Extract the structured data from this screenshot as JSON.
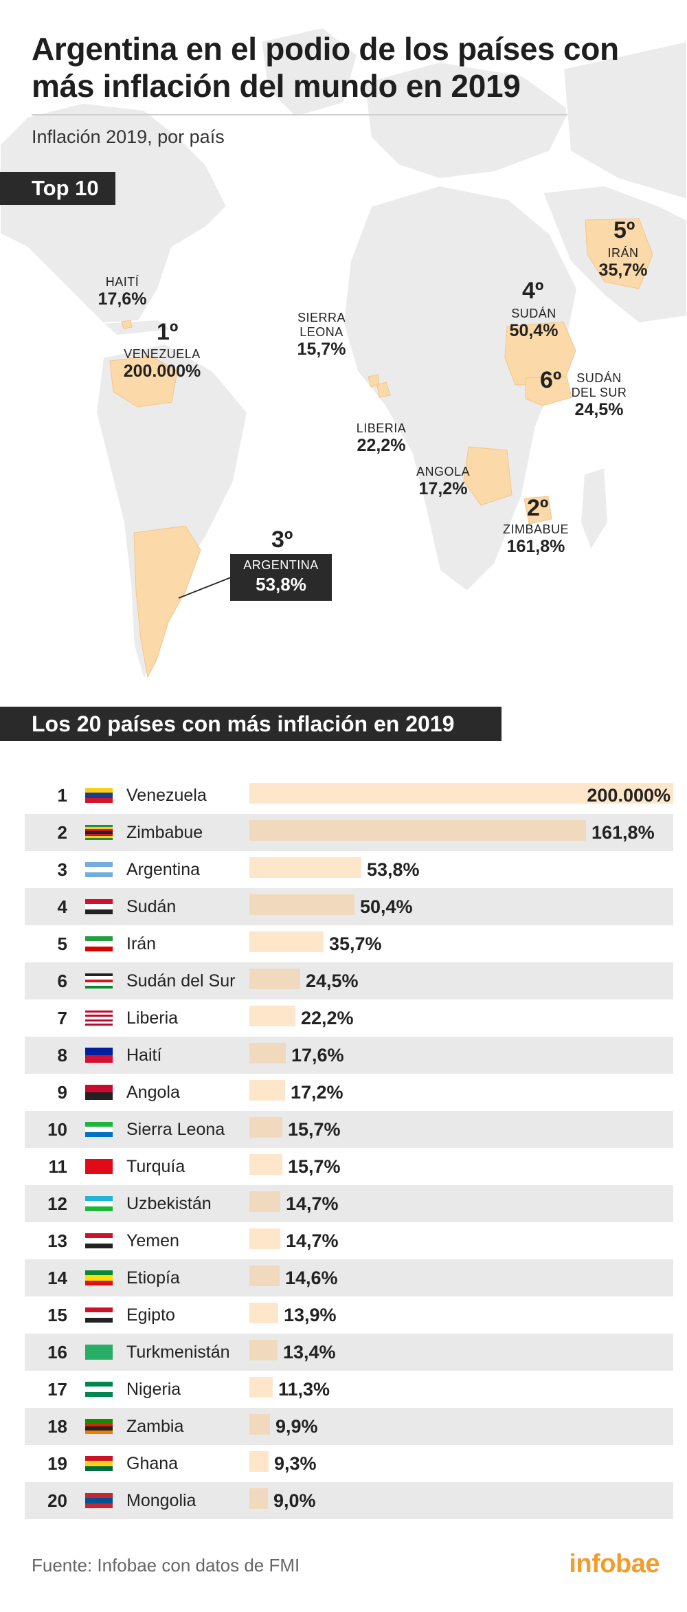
{
  "title": "Argentina en el podio de los países con más inflación del mundo en 2019",
  "subtitle": "Inflación 2019, por país",
  "top10_label": "Top 10",
  "list_label": "Los 20 países con más inflación en 2019",
  "colors": {
    "highlight": "#fde6c9",
    "highlight_alt": "#f0d9bc",
    "band": "#e9e9e9",
    "dark": "#2a2a2a",
    "brand": "#f39c2c"
  },
  "map_labels": {
    "haiti": {
      "country": "HAITÍ",
      "value": "17,6%"
    },
    "venezuela": {
      "rank": "1º",
      "country": "VENEZUELA",
      "value": "200.000%"
    },
    "sierra_leona": {
      "country_line1": "SIERRA",
      "country_line2": "LEONA",
      "value": "15,7%"
    },
    "liberia": {
      "country": "LIBERIA",
      "value": "22,2%"
    },
    "angola": {
      "country": "ANGOLA",
      "value": "17,2%"
    },
    "zimbabue": {
      "rank": "2º",
      "country": "ZIMBABUE",
      "value": "161,8%"
    },
    "argentina": {
      "rank": "3º",
      "country": "ARGENTINA",
      "value": "53,8%"
    },
    "sudan": {
      "rank": "4º",
      "country": "SUDÁN",
      "value": "50,4%"
    },
    "iran": {
      "rank": "5º",
      "country": "IRÁN",
      "value": "35,7%"
    },
    "sudan_sur": {
      "rank": "6º",
      "country_line1": "SUDÁN",
      "country_line2": "DEL SUR",
      "value": "24,5%"
    }
  },
  "chart_data": {
    "type": "bar",
    "orientation": "horizontal",
    "title": "Los 20 países con más inflación en 2019",
    "unit": "%",
    "rows": [
      {
        "rank": "1",
        "country": "Venezuela",
        "value": 200000,
        "label": "200.000%",
        "flag": "venezuela"
      },
      {
        "rank": "2",
        "country": "Zimbabue",
        "value": 161.8,
        "label": "161,8%",
        "flag": "zimbabue"
      },
      {
        "rank": "3",
        "country": "Argentina",
        "value": 53.8,
        "label": "53,8%",
        "flag": "argentina"
      },
      {
        "rank": "4",
        "country": "Sudán",
        "value": 50.4,
        "label": "50,4%",
        "flag": "sudan"
      },
      {
        "rank": "5",
        "country": "Irán",
        "value": 35.7,
        "label": "35,7%",
        "flag": "iran"
      },
      {
        "rank": "6",
        "country": "Sudán del Sur",
        "value": 24.5,
        "label": "24,5%",
        "flag": "sudan-sur"
      },
      {
        "rank": "7",
        "country": "Liberia",
        "value": 22.2,
        "label": "22,2%",
        "flag": "liberia"
      },
      {
        "rank": "8",
        "country": "Haití",
        "value": 17.6,
        "label": "17,6%",
        "flag": "haiti"
      },
      {
        "rank": "9",
        "country": "Angola",
        "value": 17.2,
        "label": "17,2%",
        "flag": "angola"
      },
      {
        "rank": "10",
        "country": "Sierra Leona",
        "value": 15.7,
        "label": "15,7%",
        "flag": "sierra-leona"
      },
      {
        "rank": "11",
        "country": "Turquía",
        "value": 15.7,
        "label": "15,7%",
        "flag": "turquia"
      },
      {
        "rank": "12",
        "country": "Uzbekistán",
        "value": 14.7,
        "label": "14,7%",
        "flag": "uzbekistan"
      },
      {
        "rank": "13",
        "country": "Yemen",
        "value": 14.7,
        "label": "14,7%",
        "flag": "yemen"
      },
      {
        "rank": "14",
        "country": "Etiopía",
        "value": 14.6,
        "label": "14,6%",
        "flag": "etiopia"
      },
      {
        "rank": "15",
        "country": "Egipto",
        "value": 13.9,
        "label": "13,9%",
        "flag": "egipto"
      },
      {
        "rank": "16",
        "country": "Turkmenistán",
        "value": 13.4,
        "label": "13,4%",
        "flag": "turkmenistan"
      },
      {
        "rank": "17",
        "country": "Nigeria",
        "value": 11.3,
        "label": "11,3%",
        "flag": "nigeria"
      },
      {
        "rank": "18",
        "country": "Zambia",
        "value": 9.9,
        "label": "9,9%",
        "flag": "zambia"
      },
      {
        "rank": "19",
        "country": "Ghana",
        "value": 9.3,
        "label": "9,3%",
        "flag": "ghana"
      },
      {
        "rank": "20",
        "country": "Mongolia",
        "value": 9.0,
        "label": "9,0%",
        "flag": "mongolia"
      }
    ]
  },
  "flags": {
    "venezuela": [
      "#f7d117",
      "#1d3c8f",
      "#cf142b"
    ],
    "zimbabue": [
      "#2a8a3a",
      "#f7d117",
      "#d21034",
      "#222222",
      "#d21034",
      "#f7d117",
      "#2a8a3a"
    ],
    "argentina": [
      "#74acdf",
      "#ffffff",
      "#74acdf"
    ],
    "sudan": [
      "#d21034",
      "#ffffff",
      "#222222"
    ],
    "iran": [
      "#239f40",
      "#ffffff",
      "#da0000"
    ],
    "sudan-sur": [
      "#222222",
      "#ffffff",
      "#da121a",
      "#ffffff",
      "#078930"
    ],
    "liberia": [
      "#bf0a30",
      "#ffffff",
      "#bf0a30",
      "#ffffff",
      "#bf0a30",
      "#ffffff",
      "#bf0a30"
    ],
    "haiti": [
      "#00209f",
      "#d21034"
    ],
    "angola": [
      "#cc092f",
      "#222222"
    ],
    "sierra-leona": [
      "#1eb53a",
      "#ffffff",
      "#0072c6"
    ],
    "turquia": [
      "#e30a17",
      "#e30a17"
    ],
    "uzbekistan": [
      "#1eb5d9",
      "#ffffff",
      "#1eb53a"
    ],
    "yemen": [
      "#ce1126",
      "#ffffff",
      "#222222"
    ],
    "etiopia": [
      "#078930",
      "#fcdd09",
      "#da121a"
    ],
    "egipto": [
      "#ce1126",
      "#ffffff",
      "#222222"
    ],
    "turkmenistan": [
      "#28ae66",
      "#28ae66"
    ],
    "nigeria": [
      "#008751",
      "#ffffff",
      "#008751"
    ],
    "zambia": [
      "#198a00",
      "#de2010",
      "#222222",
      "#ef7d00"
    ],
    "ghana": [
      "#ce1126",
      "#fcd116",
      "#006b3f"
    ],
    "mongolia": [
      "#c4272f",
      "#015197",
      "#c4272f"
    ]
  },
  "source": "Fuente: Infobae con datos de FMI",
  "brand": "infobae"
}
